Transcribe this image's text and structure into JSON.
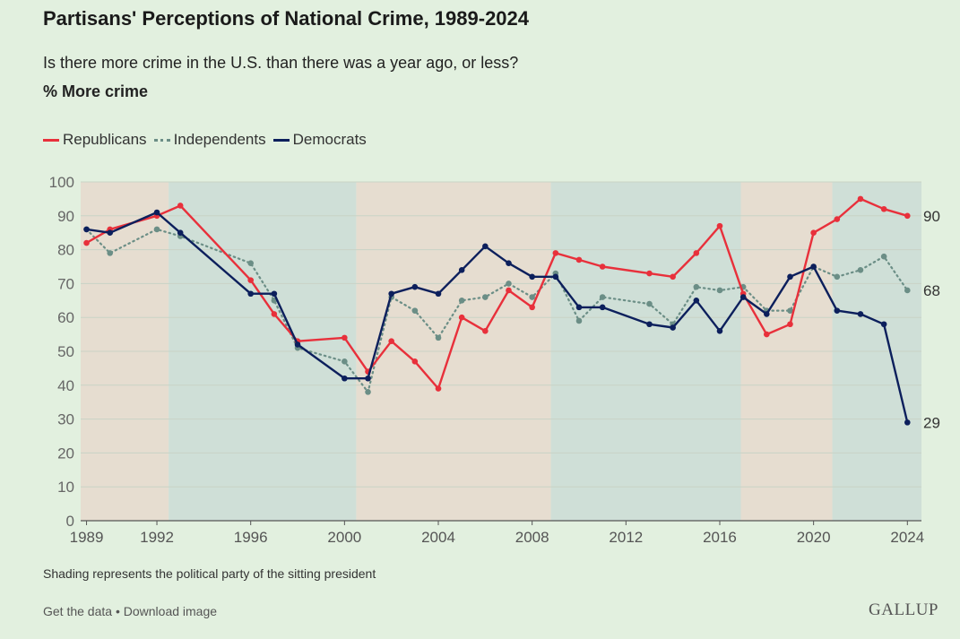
{
  "header": {
    "title": "Partisans' Perceptions of National Crime, 1989-2024",
    "subtitle": "Is there more crime in the U.S. than there was a year ago, or less?",
    "measure": "% More crime"
  },
  "legend": {
    "republicans": "Republicans",
    "independents": "Independents",
    "democrats": "Democrats"
  },
  "footer": {
    "note": "Shading represents the political party of the sitting president",
    "get_data": "Get the data",
    "separator": " • ",
    "download": "Download image",
    "brand": "GALLUP"
  },
  "colors": {
    "republicans": "#e8303b",
    "independents": "#6b8e86",
    "democrats": "#0c1f5c",
    "republican_shade": "#e6ddd0",
    "democrat_shade": "#cfdfd7",
    "background": "#e2f0df"
  },
  "chart_data": {
    "type": "line",
    "title": "Partisans' Perceptions of National Crime, 1989-2024",
    "ylabel": "% More crime",
    "xlim": [
      1988.75,
      2024.6
    ],
    "ylim": [
      0,
      100
    ],
    "yticks": [
      0,
      10,
      20,
      30,
      40,
      50,
      60,
      70,
      80,
      90,
      100
    ],
    "xticks": [
      1989,
      1992,
      1996,
      2000,
      2004,
      2008,
      2012,
      2016,
      2020,
      2024
    ],
    "shading": [
      {
        "party": "Republican",
        "from": 1988.75,
        "to": 1992.5
      },
      {
        "party": "Democrat",
        "from": 1992.5,
        "to": 2000.5
      },
      {
        "party": "Republican",
        "from": 2000.5,
        "to": 2008.8
      },
      {
        "party": "Democrat",
        "from": 2008.8,
        "to": 2016.9
      },
      {
        "party": "Republican",
        "from": 2016.9,
        "to": 2020.8
      },
      {
        "party": "Democrat",
        "from": 2020.8,
        "to": 2024.6
      }
    ],
    "series": [
      {
        "name": "Republicans",
        "style": "solid",
        "end_label": "90",
        "points": [
          [
            1989,
            82
          ],
          [
            1990,
            86
          ],
          [
            1992,
            90
          ],
          [
            1993,
            93
          ],
          [
            1996,
            71
          ],
          [
            1997,
            61
          ],
          [
            1998,
            53
          ],
          [
            2000,
            54
          ],
          [
            2001,
            44
          ],
          [
            2002,
            53
          ],
          [
            2003,
            47
          ],
          [
            2004,
            39
          ],
          [
            2005,
            60
          ],
          [
            2006,
            56
          ],
          [
            2007,
            68
          ],
          [
            2008,
            63
          ],
          [
            2009,
            79
          ],
          [
            2010,
            77
          ],
          [
            2011,
            75
          ],
          [
            2013,
            73
          ],
          [
            2014,
            72
          ],
          [
            2015,
            79
          ],
          [
            2016,
            87
          ],
          [
            2017,
            67
          ],
          [
            2018,
            55
          ],
          [
            2019,
            58
          ],
          [
            2020,
            85
          ],
          [
            2021,
            89
          ],
          [
            2022,
            95
          ],
          [
            2023,
            92
          ],
          [
            2024,
            90
          ]
        ]
      },
      {
        "name": "Independents",
        "style": "dotted",
        "end_label": "68",
        "points": [
          [
            1989,
            86
          ],
          [
            1990,
            79
          ],
          [
            1992,
            86
          ],
          [
            1993,
            84
          ],
          [
            1996,
            76
          ],
          [
            1997,
            65
          ],
          [
            1998,
            51
          ],
          [
            2000,
            47
          ],
          [
            2001,
            38
          ],
          [
            2002,
            66
          ],
          [
            2003,
            62
          ],
          [
            2004,
            54
          ],
          [
            2005,
            65
          ],
          [
            2006,
            66
          ],
          [
            2007,
            70
          ],
          [
            2008,
            66
          ],
          [
            2009,
            73
          ],
          [
            2010,
            59
          ],
          [
            2011,
            66
          ],
          [
            2013,
            64
          ],
          [
            2014,
            58
          ],
          [
            2015,
            69
          ],
          [
            2016,
            68
          ],
          [
            2017,
            69
          ],
          [
            2018,
            62
          ],
          [
            2019,
            62
          ],
          [
            2020,
            75
          ],
          [
            2021,
            72
          ],
          [
            2022,
            74
          ],
          [
            2023,
            78
          ],
          [
            2024,
            68
          ]
        ]
      },
      {
        "name": "Democrats",
        "style": "solid",
        "end_label": "29",
        "points": [
          [
            1989,
            86
          ],
          [
            1990,
            85
          ],
          [
            1992,
            91
          ],
          [
            1993,
            85
          ],
          [
            1996,
            67
          ],
          [
            1997,
            67
          ],
          [
            1998,
            52
          ],
          [
            2000,
            42
          ],
          [
            2001,
            42
          ],
          [
            2002,
            67
          ],
          [
            2003,
            69
          ],
          [
            2004,
            67
          ],
          [
            2005,
            74
          ],
          [
            2006,
            81
          ],
          [
            2007,
            76
          ],
          [
            2008,
            72
          ],
          [
            2009,
            72
          ],
          [
            2010,
            63
          ],
          [
            2011,
            63
          ],
          [
            2013,
            58
          ],
          [
            2014,
            57
          ],
          [
            2015,
            65
          ],
          [
            2016,
            56
          ],
          [
            2017,
            66
          ],
          [
            2018,
            61
          ],
          [
            2019,
            72
          ],
          [
            2020,
            75
          ],
          [
            2021,
            62
          ],
          [
            2022,
            61
          ],
          [
            2023,
            58
          ],
          [
            2024,
            29
          ]
        ]
      }
    ]
  }
}
